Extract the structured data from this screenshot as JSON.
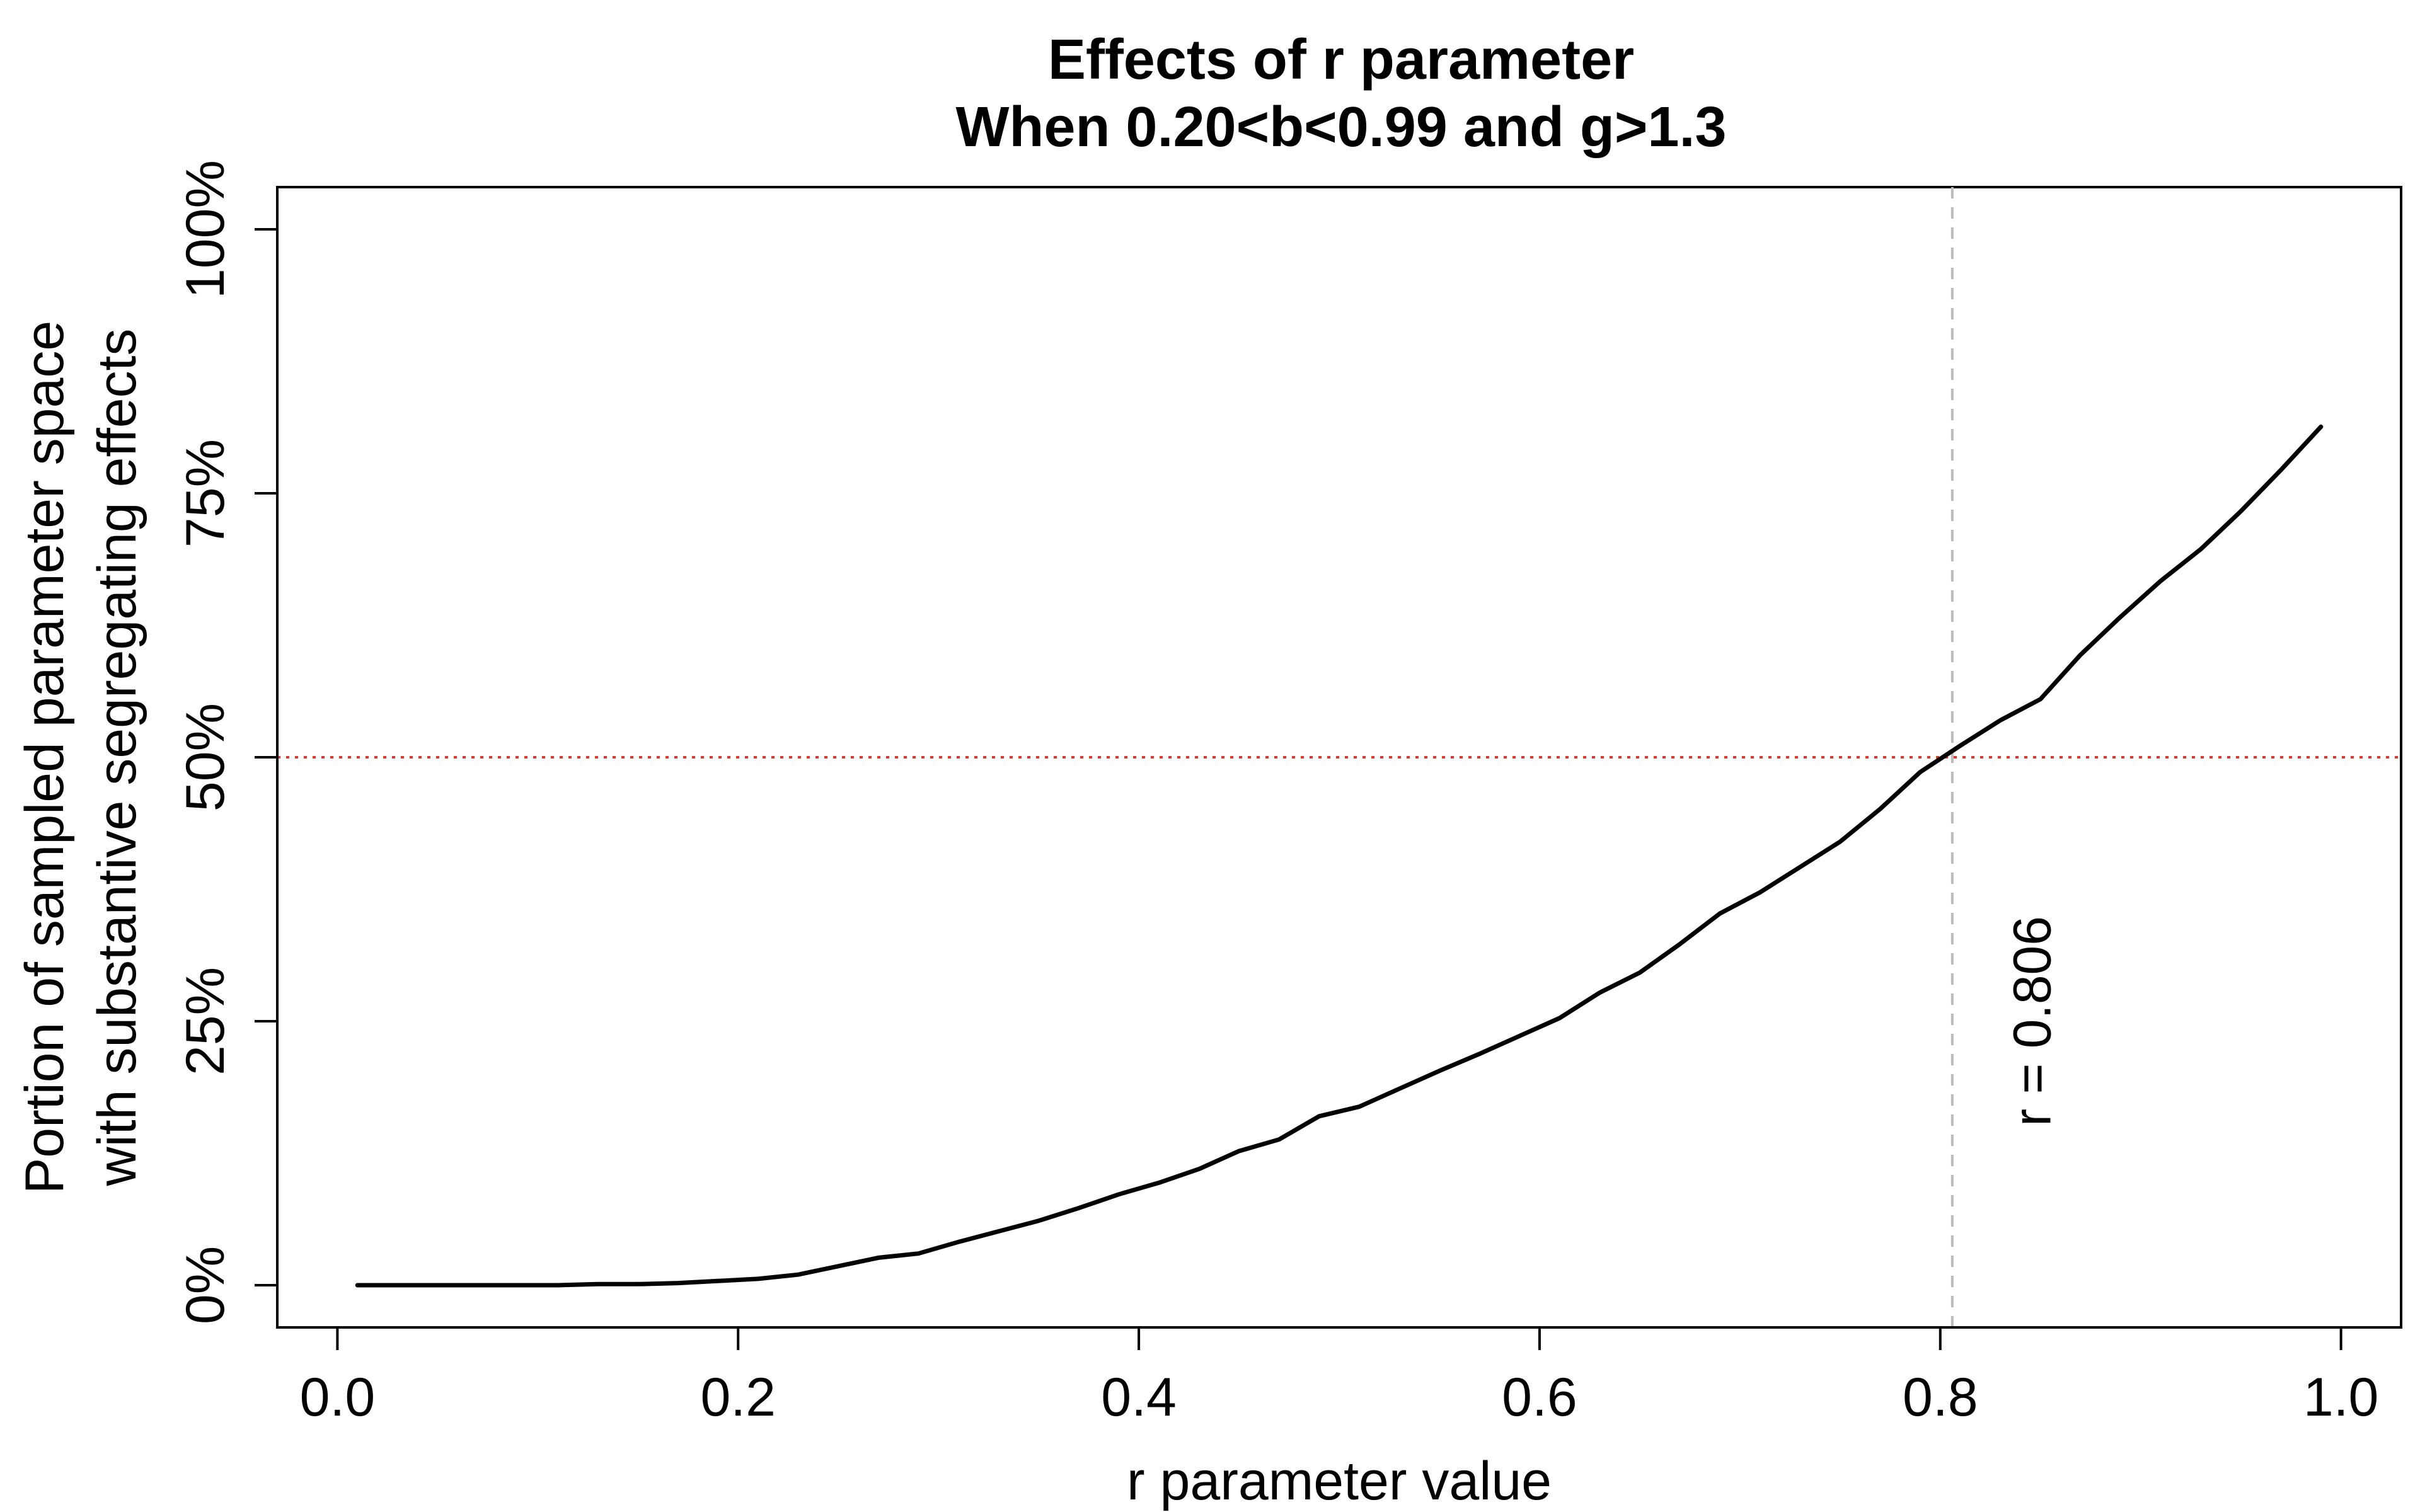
{
  "chart_data": {
    "type": "line",
    "title": "Effects of r parameter",
    "subtitle": "When 0.20<b<0.99 and g>1.3",
    "xlabel": "r parameter value",
    "ylabel_line1": "Portion of sampled parameter space",
    "ylabel_line2": "with substantive segregating effects",
    "xlim": [
      -0.03,
      1.03
    ],
    "ylim": [
      -0.04,
      1.04
    ],
    "x_ticks": [
      0.0,
      0.2,
      0.4,
      0.6,
      0.8,
      1.0
    ],
    "x_tick_labels": [
      "0.0",
      "0.2",
      "0.4",
      "0.6",
      "0.8",
      "1.0"
    ],
    "y_ticks": [
      0,
      0.25,
      0.5,
      0.75,
      1.0
    ],
    "y_tick_labels": [
      "0%",
      "25%",
      "50%",
      "75%",
      "100%"
    ],
    "grid": false,
    "series": [
      {
        "color": "#000000",
        "x": [
          0.01,
          0.03,
          0.05,
          0.07,
          0.09,
          0.11,
          0.13,
          0.15,
          0.17,
          0.19,
          0.21,
          0.23,
          0.25,
          0.27,
          0.29,
          0.31,
          0.33,
          0.35,
          0.37,
          0.39,
          0.41,
          0.43,
          0.45,
          0.47,
          0.49,
          0.51,
          0.53,
          0.55,
          0.57,
          0.59,
          0.61,
          0.63,
          0.65,
          0.67,
          0.69,
          0.71,
          0.73,
          0.75,
          0.77,
          0.79,
          0.81,
          0.83,
          0.85,
          0.87,
          0.89,
          0.91,
          0.93,
          0.95,
          0.97,
          0.99
        ],
        "y": [
          0.0,
          0.0,
          0.0,
          0.0,
          0.0,
          0.0,
          0.001,
          0.001,
          0.002,
          0.004,
          0.006,
          0.01,
          0.018,
          0.026,
          0.03,
          0.041,
          0.051,
          0.061,
          0.073,
          0.086,
          0.097,
          0.11,
          0.127,
          0.138,
          0.16,
          0.169,
          0.186,
          0.203,
          0.219,
          0.236,
          0.253,
          0.277,
          0.296,
          0.323,
          0.352,
          0.372,
          0.396,
          0.42,
          0.451,
          0.486,
          0.511,
          0.535,
          0.555,
          0.597,
          0.633,
          0.667,
          0.697,
          0.733,
          0.772,
          0.813
        ]
      }
    ],
    "hline": {
      "y": 0.5,
      "color": "#e0382f",
      "style": "dotted"
    },
    "vline": {
      "x": 0.806,
      "color": "#bbbbbb",
      "style": "dashed"
    },
    "annotation": {
      "text": "r = 0.806",
      "x": 0.855,
      "y": 0.25,
      "rotation": -90
    }
  }
}
